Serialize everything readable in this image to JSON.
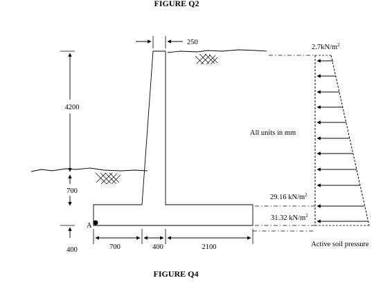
{
  "header": {
    "top_caption": "FIGURE Q2",
    "bottom_caption": "FIGURE Q4"
  },
  "dims": {
    "stem_top_width": "250",
    "retained_height": "4200",
    "toe_depth": "700",
    "base_thickness": "400",
    "toe_length": "700",
    "stem_base_width": "400",
    "heel_length": "2100"
  },
  "labels": {
    "units_note": "All units in mm",
    "point_a": "A",
    "pressure_top": "2.7kN/m",
    "pressure_mid": "29.16 kN/m",
    "pressure_bottom": "31.32 kN/m",
    "pressure_unit_exp": "2",
    "diagram_title": "Active soil pressure"
  }
}
